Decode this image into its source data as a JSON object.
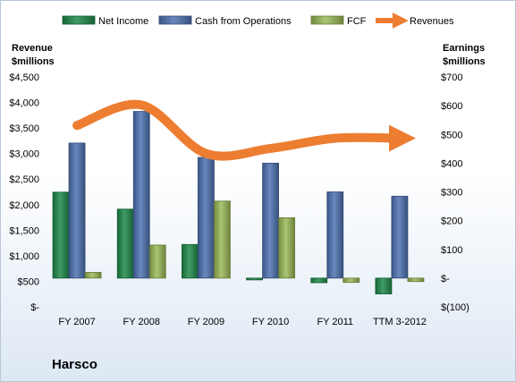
{
  "chart_data": {
    "type": "bar",
    "categories": [
      "FY 2007",
      "FY 2008",
      "FY 2009",
      "FY 2010",
      "FY 2011",
      "TTM 3-2012"
    ],
    "series": [
      {
        "name": "Net Income",
        "axis": "right",
        "values": [
          299,
          240,
          117,
          -2,
          -16,
          -55
        ],
        "color": "#1e8a4a"
      },
      {
        "name": "Cash from Operations",
        "axis": "right",
        "values": [
          470,
          580,
          420,
          400,
          300,
          285
        ],
        "color": "#4f73b3"
      },
      {
        "name": "FCF",
        "axis": "right",
        "values": [
          20,
          115,
          268,
          210,
          -15,
          -12
        ],
        "color": "#9bbb59"
      },
      {
        "name": "Revenues",
        "axis": "left",
        "type": "line",
        "values": [
          3550,
          3950,
          3000,
          3100,
          3300,
          3300
        ],
        "color": "#ed7d31"
      }
    ],
    "left_axis": {
      "title": "Revenue\n$millions",
      "ylim": [
        0,
        4500
      ],
      "ticks": [
        "$-",
        "$500",
        "$1,000",
        "$1,500",
        "$2,000",
        "$2,500",
        "$3,000",
        "$3,500",
        "$4,000",
        "$4,500"
      ]
    },
    "right_axis": {
      "title": "Earnings\n$millions",
      "ylim": [
        -100,
        700
      ],
      "ticks": [
        "$(100)",
        "$-",
        "$100",
        "$200",
        "$300",
        "$400",
        "$500",
        "$600",
        "$700"
      ]
    },
    "legend_placement": "top",
    "grid": false
  },
  "company": "Harsco"
}
